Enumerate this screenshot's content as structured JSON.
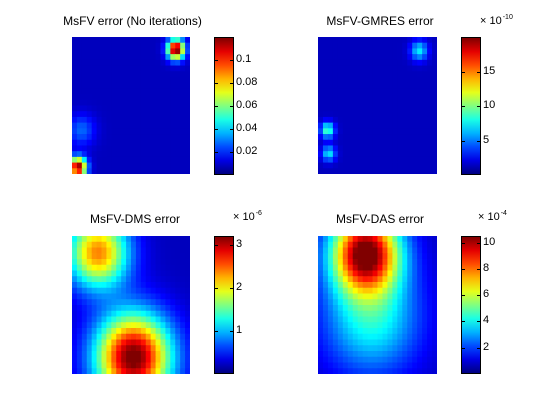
{
  "chart_data": [
    {
      "type": "heatmap",
      "title": "MsFV error (No iterations)",
      "colormap": "jet",
      "colorbar": {
        "min": 0,
        "max": 0.12,
        "ticks": [
          "0.1",
          "0.08",
          "0.06",
          "0.04",
          "0.02"
        ],
        "tick_values": [
          0.1,
          0.08,
          0.06,
          0.04,
          0.02
        ],
        "multiplier": "",
        "exponent": ""
      },
      "features": [
        {
          "x": 0.88,
          "y": 0.09,
          "value": 0.12,
          "spread": 0.05
        },
        {
          "x": 0.05,
          "y": 0.95,
          "value": 0.115,
          "spread": 0.05
        },
        {
          "x": 0.08,
          "y": 0.68,
          "value": 0.02,
          "spread": 0.08
        }
      ]
    },
    {
      "type": "heatmap",
      "title": "MsFV-GMRES error",
      "colormap": "jet",
      "colorbar": {
        "min": 0,
        "max": 20,
        "ticks": [
          "15",
          "10",
          "5"
        ],
        "tick_values": [
          15,
          10,
          5
        ],
        "multiplier": "× 10",
        "exponent": "-10"
      },
      "features": [
        {
          "x": 0.08,
          "y": 0.68,
          "value": 8,
          "spread": 0.04
        },
        {
          "x": 0.09,
          "y": 0.85,
          "value": 6,
          "spread": 0.04
        },
        {
          "x": 0.85,
          "y": 0.1,
          "value": 6,
          "spread": 0.05
        }
      ]
    },
    {
      "type": "heatmap",
      "title": "MsFV-DMS error",
      "colormap": "jet",
      "colorbar": {
        "min": 0,
        "max": 3.2,
        "ticks": [
          "3",
          "2",
          "1"
        ],
        "tick_values": [
          3,
          2,
          1
        ],
        "multiplier": "× 10",
        "exponent": "-6"
      },
      "features": [
        {
          "x": 0.22,
          "y": 0.12,
          "value": 2.2,
          "spread": 0.18
        },
        {
          "x": 0.52,
          "y": 0.88,
          "value": 3.1,
          "spread": 0.22
        }
      ]
    },
    {
      "type": "heatmap",
      "title": "MsFV-DAS error",
      "colormap": "jet",
      "colorbar": {
        "min": 0,
        "max": 10.5,
        "ticks": [
          "10",
          "8",
          "6",
          "4",
          "2"
        ],
        "tick_values": [
          10,
          8,
          6,
          4,
          2
        ],
        "multiplier": "× 10",
        "exponent": "-4"
      },
      "features": [
        {
          "x": 0.4,
          "y": 0.12,
          "value": 10,
          "spread": 0.2
        },
        {
          "x": 0.45,
          "y": 0.6,
          "value": 3.5,
          "spread": 0.28
        }
      ]
    }
  ]
}
